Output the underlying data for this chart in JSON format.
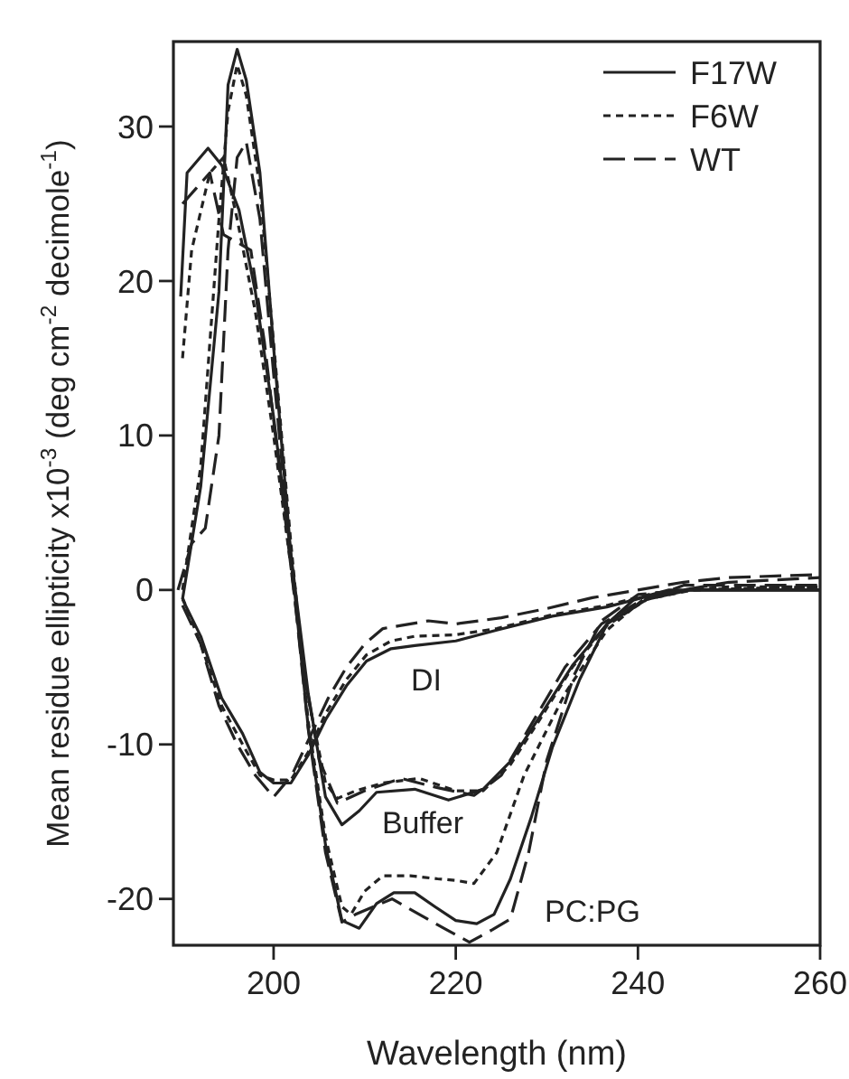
{
  "chart_data": {
    "type": "line",
    "xlabel": "Wavelength (nm)",
    "ylabel": "Mean residue ellipticity x10$^{-3}$ (deg cm$^{-2}$ decimole$^{-1}$)",
    "xlim": [
      189,
      260
    ],
    "ylim": [
      -23,
      35.5
    ],
    "xticks": [
      200,
      220,
      240,
      260
    ],
    "yticks": [
      -20,
      -10,
      0,
      10,
      20,
      30
    ],
    "grid": false,
    "legend": "top right",
    "marker": "none",
    "annotations": [
      "DI",
      "Buffer",
      "PC:PG"
    ],
    "series": [
      {
        "name": "F17W",
        "color": "#222222",
        "line_style": "solid",
        "x": [
          190,
          192,
          194,
          195,
          196,
          197,
          198.5,
          200,
          201.9,
          203.8,
          205.7,
          207.5,
          209.4,
          211.3,
          213.2,
          215.5,
          217.7,
          220,
          222.3,
          224.2,
          226,
          228.3,
          230.6,
          233.6,
          236.6,
          239.6,
          243.4,
          249,
          260
        ],
        "values": [
          -0.6,
          6.7,
          19.3,
          32.7,
          35,
          33,
          27,
          15.7,
          2.3,
          -8.9,
          -16.5,
          -21.4,
          -21.9,
          -20.3,
          -19.6,
          -19.6,
          -20.5,
          -21.4,
          -21.6,
          -21,
          -18.7,
          -14.7,
          -10.2,
          -5.8,
          -2.2,
          -0.6,
          0,
          0,
          0
        ]
      },
      {
        "name": "F6W",
        "color": "#222222",
        "line_style": "dotted",
        "x": [
          190,
          192,
          194,
          195,
          196,
          197,
          198.5,
          200,
          201.9,
          203.8,
          205.7,
          207.5,
          208.5,
          210,
          212,
          215,
          218,
          220,
          222,
          224.5,
          227.5,
          232,
          236.6,
          241,
          245,
          250,
          260
        ],
        "values": [
          0,
          8,
          24,
          31,
          34,
          32,
          26,
          16,
          3,
          -8.5,
          -16,
          -20.5,
          -21,
          -19.5,
          -18.5,
          -18.5,
          -18.7,
          -18.8,
          -19,
          -17,
          -12,
          -6.7,
          -2.6,
          -0.4,
          0,
          0.2,
          0.2
        ]
      },
      {
        "name": "WT",
        "color": "#222222",
        "line_style": "dashed",
        "x": [
          189.5,
          191,
          192.5,
          194,
          195,
          196,
          197,
          198.5,
          200,
          201.9,
          203.8,
          205.7,
          207.5,
          209,
          211,
          213,
          216,
          219,
          221.5,
          224,
          226,
          228,
          230,
          233,
          236,
          240,
          245,
          250,
          260
        ],
        "values": [
          0,
          3,
          4,
          10,
          22,
          28,
          29,
          24,
          14,
          2,
          -9,
          -17,
          -21.5,
          -21,
          -20.5,
          -20,
          -21,
          -22,
          -22.8,
          -22,
          -21.3,
          -17,
          -11,
          -5.5,
          -2,
          -0.3,
          0,
          0.5,
          0.8
        ]
      },
      {
        "color": "#222222",
        "line_style": "solid",
        "x": [
          189.8,
          190.5,
          192.8,
          194.3,
          196.2,
          198,
          200,
          201.9,
          203.8,
          205.7,
          207.5,
          209.4,
          211.3,
          215.5,
          219.2,
          223,
          226,
          229,
          232.8,
          236.6,
          241,
          245.7,
          260
        ],
        "values": [
          19,
          27,
          28.6,
          27.5,
          24.6,
          19.3,
          11.2,
          2.3,
          -6.7,
          -13.4,
          -15.2,
          -14.3,
          -13.1,
          -12.9,
          -13.6,
          -12.9,
          -11.1,
          -8.4,
          -4.9,
          -2.2,
          -0.6,
          0,
          0
        ]
      },
      {
        "color": "#222222",
        "line_style": "dotted",
        "x": [
          190,
          191,
          193,
          194.5,
          196,
          198,
          200,
          201.9,
          203.8,
          205.7,
          207,
          209,
          212,
          216,
          220,
          223,
          226,
          229,
          232.8,
          236.6,
          241,
          246,
          260
        ],
        "values": [
          15,
          22,
          27,
          28,
          24,
          18,
          10,
          1.5,
          -7,
          -12.5,
          -13.5,
          -13,
          -12.5,
          -12.2,
          -13,
          -13,
          -11.3,
          -8.6,
          -5,
          -2.3,
          -0.6,
          0,
          0.2
        ]
      },
      {
        "color": "#222222",
        "line_style": "dashed",
        "x": [
          190,
          191.5,
          193,
          194.5,
          196,
          197.5,
          199,
          201,
          203,
          205,
          207,
          210,
          214,
          218,
          222,
          225,
          228,
          232,
          236,
          240,
          245,
          260
        ],
        "values": [
          25,
          26,
          27,
          23,
          22.5,
          22,
          16,
          6,
          -4,
          -11,
          -13.8,
          -13,
          -12.2,
          -12.8,
          -13.3,
          -12,
          -9,
          -5,
          -2.2,
          -0.8,
          0.3,
          0.3
        ]
      },
      {
        "color": "#222222",
        "line_style": "solid",
        "x": [
          190,
          192,
          194.3,
          196.6,
          198.5,
          200,
          201.9,
          203.8,
          205.7,
          208,
          210.2,
          212.9,
          215.5,
          220,
          224.5,
          230.6,
          236.6,
          241.8,
          245.7,
          260
        ],
        "values": [
          -0.6,
          -3,
          -7,
          -9.3,
          -11.8,
          -12.5,
          -12.5,
          -10.7,
          -8.4,
          -6.2,
          -4.6,
          -3.8,
          -3.6,
          -3.3,
          -2.6,
          -1.7,
          -1.1,
          -0.3,
          0,
          0
        ]
      },
      {
        "color": "#222222",
        "line_style": "dotted",
        "x": [
          190,
          192,
          194.3,
          196.6,
          198.5,
          200,
          201.9,
          203.8,
          205.7,
          208,
          210.2,
          212.9,
          215.5,
          220,
          224.5,
          230.6,
          236.6,
          241.8,
          245.7,
          260
        ],
        "values": [
          -0.5,
          -3.5,
          -7.5,
          -10,
          -12,
          -12.3,
          -12.3,
          -10.5,
          -8,
          -5.8,
          -4.2,
          -3.3,
          -3,
          -2.9,
          -2.5,
          -1.6,
          -1,
          -0.2,
          0,
          0.2
        ]
      },
      {
        "color": "#222222",
        "line_style": "dashed",
        "x": [
          190,
          192,
          194,
          196,
          198,
          200,
          202,
          204,
          206,
          208,
          210,
          212,
          214,
          217,
          220,
          225,
          230,
          235,
          240,
          245,
          250,
          260
        ],
        "values": [
          -1,
          -3.5,
          -7.5,
          -10,
          -12,
          -13.4,
          -12,
          -9.5,
          -7,
          -5,
          -3.5,
          -2.5,
          -2.3,
          -2,
          -2.2,
          -1.8,
          -1.2,
          -0.5,
          0,
          0.5,
          0.8,
          1
        ]
      }
    ]
  }
}
